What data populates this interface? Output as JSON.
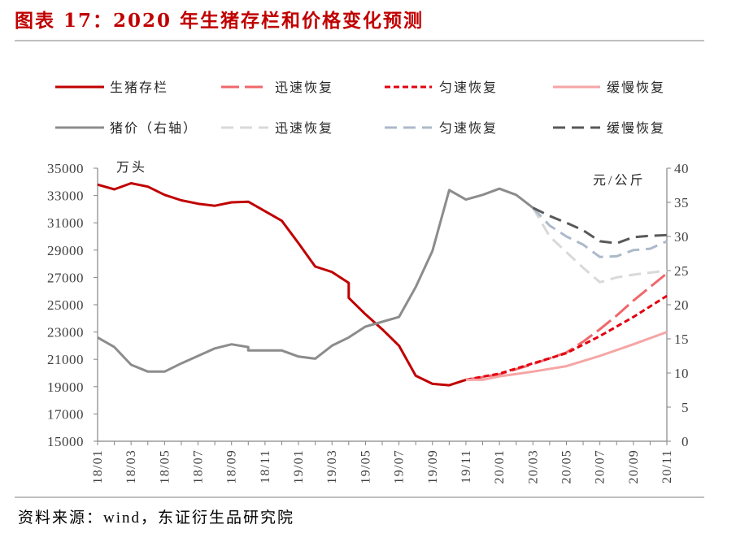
{
  "title": "图表 17：2020 年生猪存栏和价格变化预测",
  "source": "资料来源：wind，东证衍生品研究院",
  "colors": {
    "title": "#c00000",
    "axis": "#868686",
    "text": "#262626"
  },
  "chart_data": {
    "type": "line",
    "grid": false,
    "legend_position": "top",
    "x_axis": {
      "ticks": [
        "18/01",
        "18/03",
        "18/05",
        "18/07",
        "18/09",
        "18/11",
        "19/01",
        "19/03",
        "19/05",
        "19/07",
        "19/09",
        "19/11",
        "20/01",
        "20/03",
        "20/05",
        "20/07",
        "20/09",
        "20/11"
      ]
    },
    "y_left": {
      "label": "万头",
      "range": [
        15000,
        35000
      ],
      "ticks": [
        15000,
        17000,
        19000,
        21000,
        23000,
        25000,
        27000,
        29000,
        31000,
        33000,
        35000
      ]
    },
    "y_right": {
      "label": "元/公斤",
      "range": [
        0,
        40
      ],
      "ticks": [
        0,
        5,
        10,
        15,
        20,
        25,
        30,
        35,
        40
      ]
    },
    "series": [
      {
        "name": "生猪存栏",
        "axis": "left",
        "line_style": "solid",
        "color": "#c00000",
        "points": [
          [
            "18/01",
            33800
          ],
          [
            "18/02",
            33450
          ],
          [
            "18/03",
            33900
          ],
          [
            "18/04",
            33650
          ],
          [
            "18/05",
            33050
          ],
          [
            "18/06",
            32650
          ],
          [
            "18/07",
            32400
          ],
          [
            "18/08",
            32250
          ],
          [
            "18/09",
            32500
          ],
          [
            "18/10",
            32550
          ],
          [
            "18/11",
            31850
          ],
          [
            "18/12",
            31150
          ],
          [
            "19/01",
            29500
          ],
          [
            "19/02",
            27800
          ],
          [
            "19/03",
            27400
          ],
          [
            "19/04",
            26600
          ],
          [
            "19/04",
            25500
          ],
          [
            "19/05",
            24300
          ],
          [
            "19/06",
            23200
          ],
          [
            "19/07",
            22000
          ],
          [
            "19/08",
            19800
          ],
          [
            "19/09",
            19200
          ],
          [
            "19/10",
            19100
          ],
          [
            "19/11",
            19500
          ]
        ]
      },
      {
        "name": "迅速恢复",
        "axis": "left",
        "line_style": "long-dash",
        "color": "#f0676b",
        "points": [
          [
            "19/11",
            19500
          ],
          [
            "20/01",
            19900
          ],
          [
            "20/03",
            20650
          ],
          [
            "20/05",
            21500
          ],
          [
            "20/06",
            22300
          ],
          [
            "20/07",
            23200
          ],
          [
            "20/08",
            24200
          ],
          [
            "20/09",
            25300
          ],
          [
            "20/10",
            26300
          ],
          [
            "20/11",
            27300
          ]
        ]
      },
      {
        "name": "匀速恢复",
        "axis": "left",
        "line_style": "short-dash",
        "color": "#e3000f",
        "points": [
          [
            "19/11",
            19500
          ],
          [
            "20/01",
            19950
          ],
          [
            "20/03",
            20700
          ],
          [
            "20/05",
            21450
          ],
          [
            "20/07",
            22700
          ],
          [
            "20/09",
            24100
          ],
          [
            "20/11",
            25650
          ]
        ]
      },
      {
        "name": "缓慢恢复",
        "axis": "left",
        "line_style": "solid",
        "color": "#f6a5a5",
        "points": [
          [
            "19/11",
            19500
          ],
          [
            "19/12",
            19500
          ],
          [
            "20/01",
            19750
          ],
          [
            "20/03",
            20100
          ],
          [
            "20/05",
            20500
          ],
          [
            "20/07",
            21250
          ],
          [
            "20/09",
            22100
          ],
          [
            "20/11",
            23000
          ]
        ]
      },
      {
        "name": "猪价（右轴）",
        "axis": "right",
        "line_style": "solid",
        "color": "#8c8c8c",
        "points": [
          [
            "18/01",
            15.2
          ],
          [
            "18/02",
            13.8
          ],
          [
            "18/03",
            11.2
          ],
          [
            "18/04",
            10.2
          ],
          [
            "18/05",
            10.2
          ],
          [
            "18/06",
            11.4
          ],
          [
            "18/07",
            12.5
          ],
          [
            "18/08",
            13.6
          ],
          [
            "18/09",
            14.2
          ],
          [
            "18/10",
            13.8
          ],
          [
            "18/10",
            13.3
          ],
          [
            "18/11",
            13.3
          ],
          [
            "18/12",
            13.3
          ],
          [
            "19/01",
            12.4
          ],
          [
            "19/02",
            12.1
          ],
          [
            "19/03",
            14.0
          ],
          [
            "19/04",
            15.2
          ],
          [
            "19/05",
            16.8
          ],
          [
            "19/06",
            17.5
          ],
          [
            "19/07",
            18.2
          ],
          [
            "19/08",
            22.6
          ],
          [
            "19/09",
            27.9
          ],
          [
            "19/10",
            36.8
          ],
          [
            "19/11",
            35.4
          ],
          [
            "19/12",
            36.1
          ],
          [
            "20/01",
            37.0
          ],
          [
            "20/02",
            36.1
          ],
          [
            "20/03",
            34.2
          ]
        ]
      },
      {
        "name": "迅速恢复",
        "axis": "right",
        "line_style": "dash",
        "color": "#d9d9d9",
        "points": [
          [
            "20/03",
            34.2
          ],
          [
            "20/04",
            30.0
          ],
          [
            "20/05",
            27.7
          ],
          [
            "20/06",
            25.4
          ],
          [
            "20/07",
            23.3
          ],
          [
            "20/08",
            24.0
          ],
          [
            "20/09",
            24.4
          ],
          [
            "20/10",
            24.7
          ],
          [
            "20/11",
            25.0
          ]
        ]
      },
      {
        "name": "匀速恢复",
        "axis": "right",
        "line_style": "dash",
        "color": "#acb9ca",
        "points": [
          [
            "20/03",
            34.2
          ],
          [
            "20/04",
            31.6
          ],
          [
            "20/05",
            30.0
          ],
          [
            "20/06",
            28.8
          ],
          [
            "20/07",
            27.0
          ],
          [
            "20/08",
            27.1
          ],
          [
            "20/09",
            28.0
          ],
          [
            "20/10",
            28.2
          ],
          [
            "20/11",
            29.3
          ]
        ]
      },
      {
        "name": "缓慢恢复",
        "axis": "right",
        "line_style": "dash",
        "color": "#595959",
        "points": [
          [
            "20/03",
            34.2
          ],
          [
            "20/04",
            33.0
          ],
          [
            "20/05",
            32.0
          ],
          [
            "20/06",
            30.9
          ],
          [
            "20/07",
            29.3
          ],
          [
            "20/08",
            29.0
          ],
          [
            "20/09",
            29.9
          ],
          [
            "20/10",
            30.1
          ],
          [
            "20/11",
            30.2
          ]
        ]
      }
    ]
  }
}
